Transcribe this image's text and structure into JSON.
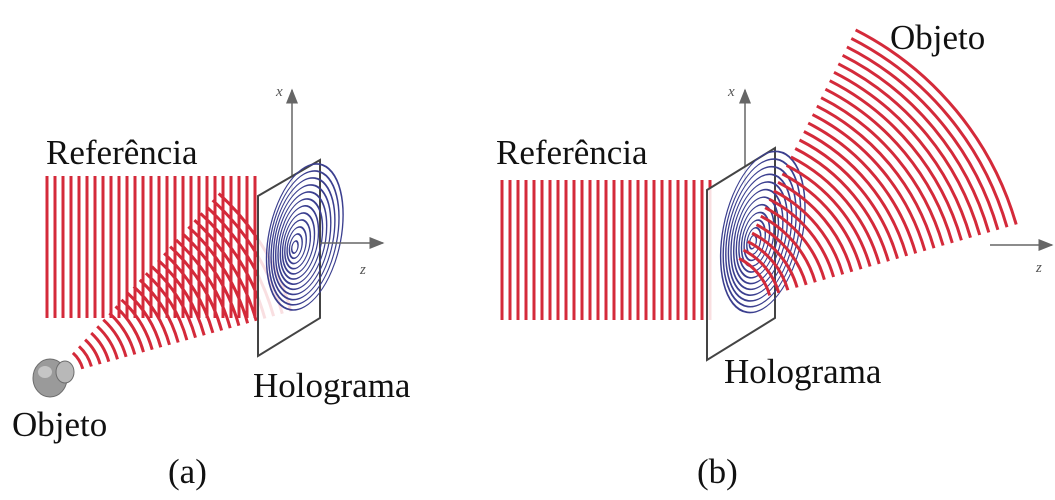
{
  "panels": [
    {
      "id": "a",
      "caption": "(a)",
      "reference_label": "Referência",
      "hologram_label": "Holograma",
      "object_label": "Objeto",
      "axis_x": "x",
      "axis_z": "z"
    },
    {
      "id": "b",
      "caption": "(b)",
      "reference_label": "Referência",
      "hologram_label": "Holograma",
      "object_label": "Objeto",
      "axis_x": "x",
      "axis_z": "z"
    }
  ],
  "colors": {
    "wave": "#d42a3a",
    "fringes": "#3b3f8f",
    "plate": "#444444",
    "axis": "#666666",
    "text": "#111111"
  }
}
